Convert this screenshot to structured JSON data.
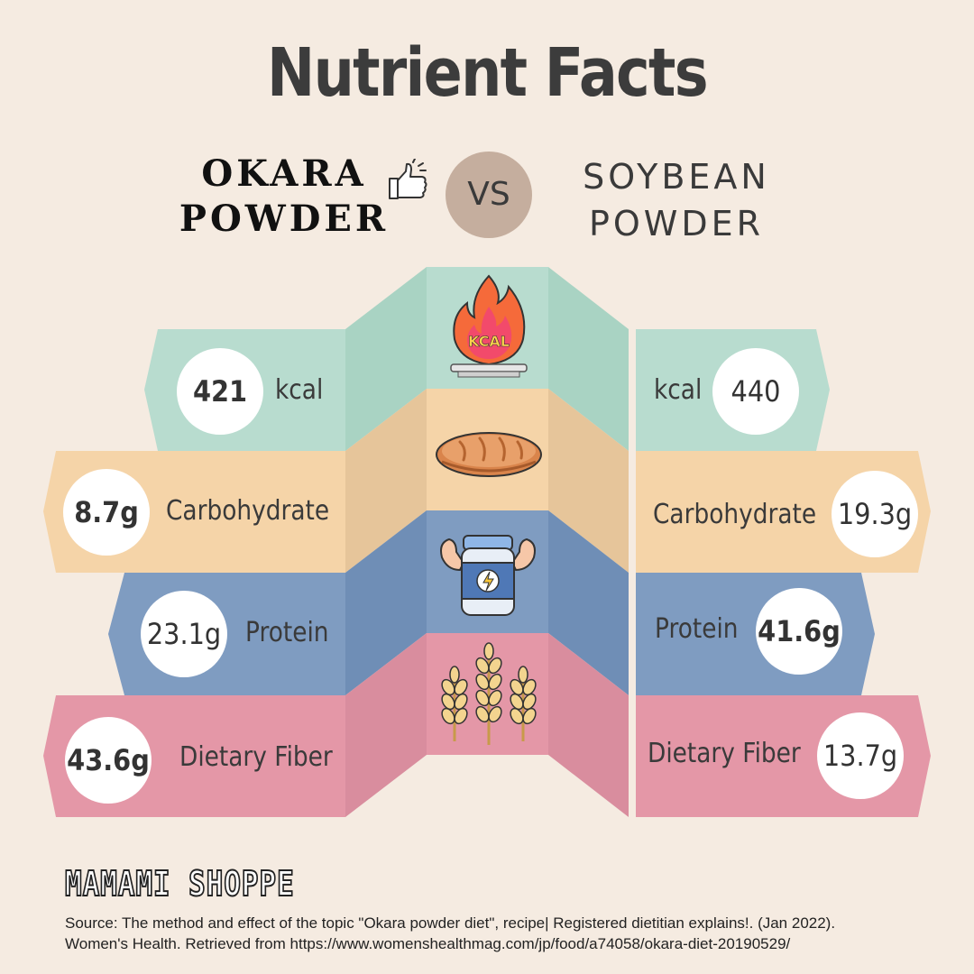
{
  "title": "Nutrient Facts",
  "left_product": {
    "line1": "OKARA",
    "line2": "POWDER"
  },
  "vs_label": "VS",
  "right_product": {
    "line1": "SOYBEAN",
    "line2": "POWDER"
  },
  "rows": [
    {
      "left_value": "421",
      "left_label": "kcal",
      "right_label": "kcal",
      "right_value": "440",
      "icon": "kcal-fire-icon",
      "icon_text": "KCAL"
    },
    {
      "left_value": "8.7g",
      "left_label": "Carbohydrate",
      "right_label": "Carbohydrate",
      "right_value": "19.3g",
      "icon": "bread-icon"
    },
    {
      "left_value": "23.1g",
      "left_label": "Protein",
      "right_label": "Protein",
      "right_value": "41.6g",
      "icon": "protein-jar-icon"
    },
    {
      "left_value": "43.6g",
      "left_label": "Dietary Fiber",
      "right_label": "Dietary Fiber",
      "right_value": "13.7g",
      "icon": "wheat-icon"
    }
  ],
  "colors": {
    "background": "#f5ebe1",
    "kcal": "#b6dbcd",
    "carbohydrate": "#f5d4a8",
    "protein": "#7f9cc1",
    "fiber": "#e497a7",
    "vs_circle": "#c5ae9e"
  },
  "brand": "MAMAMI SHOPPE",
  "source": {
    "line1": "Source: The method and effect of the topic \"Okara powder diet\", recipe| Registered dietitian explains!. (Jan 2022).",
    "line2": "Women's Health. Retrieved from https://www.womenshealthmag.com/jp/food/a74058/okara-diet-20190529/"
  }
}
